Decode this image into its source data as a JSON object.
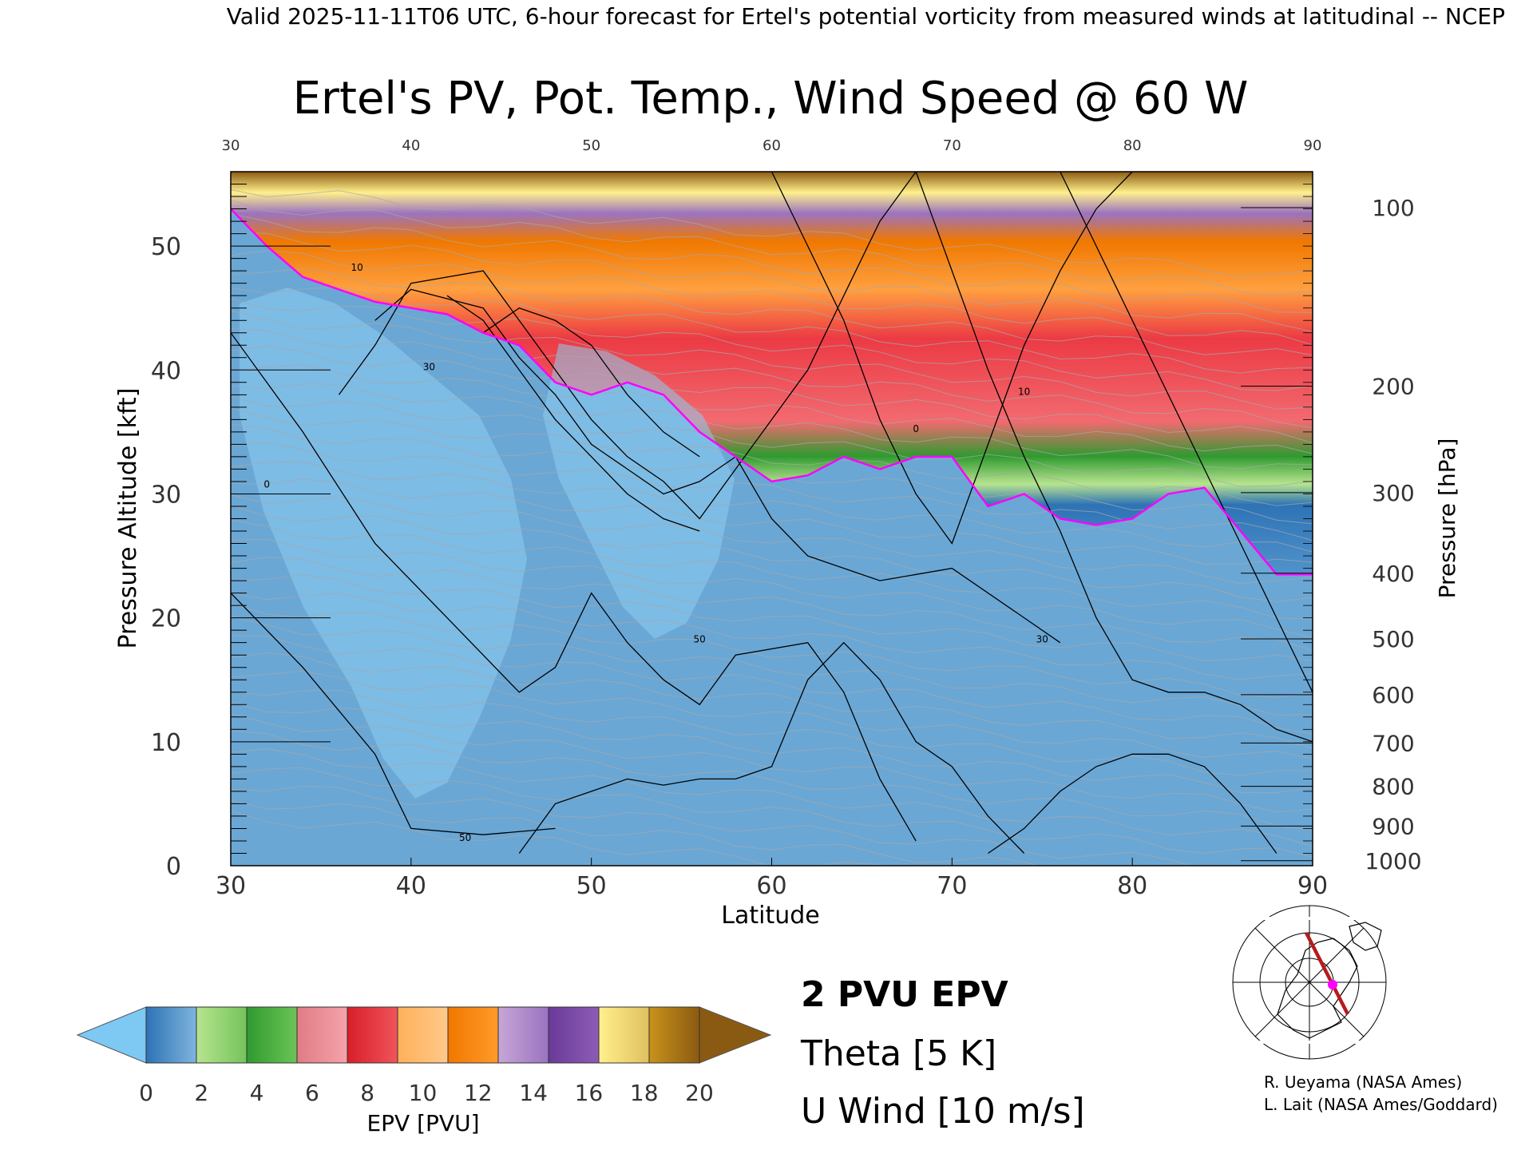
{
  "header_text": "Valid 2025-11-11T06 UTC, 6-hour forecast for Ertel's potential vorticity from measured winds at latitudinal -- NCEP",
  "credits": [
    "R. Ueyama (NASA Ames)",
    "L. Lait (NASA Ames/Goddard)"
  ],
  "legend": {
    "items": [
      {
        "label": "2 PVU EPV",
        "color": "#ff00ff"
      },
      {
        "label": "Theta [5 K]",
        "color": "#a0a0a0"
      },
      {
        "label": "U Wind [10 m/s]",
        "color": "#000000"
      }
    ]
  },
  "colorbar": {
    "label": "EPV [PVU]",
    "ticks": [
      "0",
      "2",
      "4",
      "6",
      "8",
      "10",
      "12",
      "14",
      "16",
      "18",
      "20"
    ],
    "under_color": "#7ec8f4",
    "over_color": "#8b5a12",
    "segments": [
      [
        "#2d73b6",
        "#7fb4dd"
      ],
      [
        "#b7e48f",
        "#74c35b"
      ],
      [
        "#2f9a30",
        "#6cc456"
      ],
      [
        "#e07b84",
        "#f5a3aa"
      ],
      [
        "#d81e28",
        "#f0545c"
      ],
      [
        "#ffb05a",
        "#ffc98a"
      ],
      [
        "#f07800",
        "#ff9a2a"
      ],
      [
        "#c7a6d6",
        "#9b73c0"
      ],
      [
        "#6a3a9a",
        "#8c5cb5"
      ],
      [
        "#fff08c",
        "#e0c060"
      ],
      [
        "#c8921a",
        "#8b5a12"
      ]
    ]
  },
  "chart_data": {
    "type": "heatmap",
    "title": "Ertel's PV, Pot. Temp., Wind Speed @ 60 W",
    "xlabel": "Latitude",
    "ylabel": "Pressure Altitude [kft]",
    "ylabel_right": "Pressure [hPa]",
    "xlim": [
      30,
      90
    ],
    "ylim": [
      0,
      56
    ],
    "x_ticks": [
      30,
      40,
      50,
      60,
      70,
      80,
      90
    ],
    "y_ticks": [
      0,
      10,
      20,
      30,
      40,
      50
    ],
    "pressure_ticks": [
      {
        "label": "100",
        "kft": 53.1
      },
      {
        "label": "200",
        "kft": 38.7
      },
      {
        "label": "300",
        "kft": 30.1
      },
      {
        "label": "400",
        "kft": 23.6
      },
      {
        "label": "500",
        "kft": 18.3
      },
      {
        "label": "600",
        "kft": 13.8
      },
      {
        "label": "700",
        "kft": 9.9
      },
      {
        "label": "800",
        "kft": 6.4
      },
      {
        "label": "900",
        "kft": 3.2
      },
      {
        "label": "1000",
        "kft": 0.4
      }
    ],
    "tropopause_2pvu": {
      "lat": [
        30,
        32,
        34,
        36,
        38,
        40,
        42,
        44,
        46,
        48,
        50,
        52,
        54,
        56,
        58,
        60,
        62,
        64,
        66,
        68,
        70,
        72,
        74,
        76,
        78,
        80,
        82,
        84,
        86,
        88,
        90
      ],
      "kft": [
        53,
        50,
        47.5,
        46.5,
        45.5,
        45,
        44.5,
        43,
        42,
        39,
        38,
        39,
        38,
        35,
        33,
        31,
        31.5,
        33,
        32,
        33,
        33,
        29,
        30,
        28,
        27.5,
        28,
        30,
        30.5,
        27,
        23.5,
        23.5
      ]
    },
    "wind_contour_labels": [
      "0",
      "10",
      "30",
      "50"
    ]
  }
}
